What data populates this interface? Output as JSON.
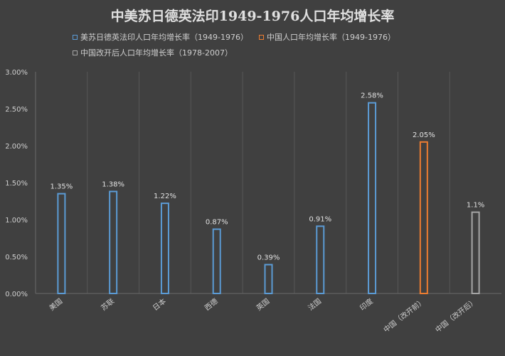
{
  "chart_data": {
    "type": "bar",
    "title": "中美苏日德英法印1949-1976人口年均增长率",
    "categories": [
      "美国",
      "苏联",
      "日本",
      "西德",
      "英国",
      "法国",
      "印度",
      "中国（改开前）",
      "中国（改开后）"
    ],
    "series": [
      {
        "name": "美苏日德英法印人口年均增长率（1949-1976）",
        "color": "#5b9bd5",
        "values": [
          1.35,
          1.38,
          1.22,
          0.87,
          0.39,
          0.91,
          2.58,
          null,
          null
        ],
        "labels": [
          "1.35%",
          "1.38%",
          "1.22%",
          "0.87%",
          "0.39%",
          "0.91%",
          "2.58%",
          null,
          null
        ]
      },
      {
        "name": "中国人口年均增长率（1949-1976）",
        "color": "#ed7d31",
        "values": [
          null,
          null,
          null,
          null,
          null,
          null,
          null,
          2.05,
          null
        ],
        "labels": [
          null,
          null,
          null,
          null,
          null,
          null,
          null,
          "2.05%",
          null
        ]
      },
      {
        "name": "中国改开后人口年均增长率（1978-2007）",
        "color": "#a5a5a5",
        "values": [
          null,
          null,
          null,
          null,
          null,
          null,
          null,
          null,
          1.1
        ],
        "labels": [
          null,
          null,
          null,
          null,
          null,
          null,
          null,
          null,
          "1.1%"
        ]
      }
    ],
    "yticks": [
      "0.00%",
      "0.50%",
      "1.00%",
      "1.50%",
      "2.00%",
      "2.50%",
      "3.00%"
    ],
    "ylim": [
      0,
      3.0
    ],
    "grid": "vertical",
    "legend_position": "top-left"
  }
}
